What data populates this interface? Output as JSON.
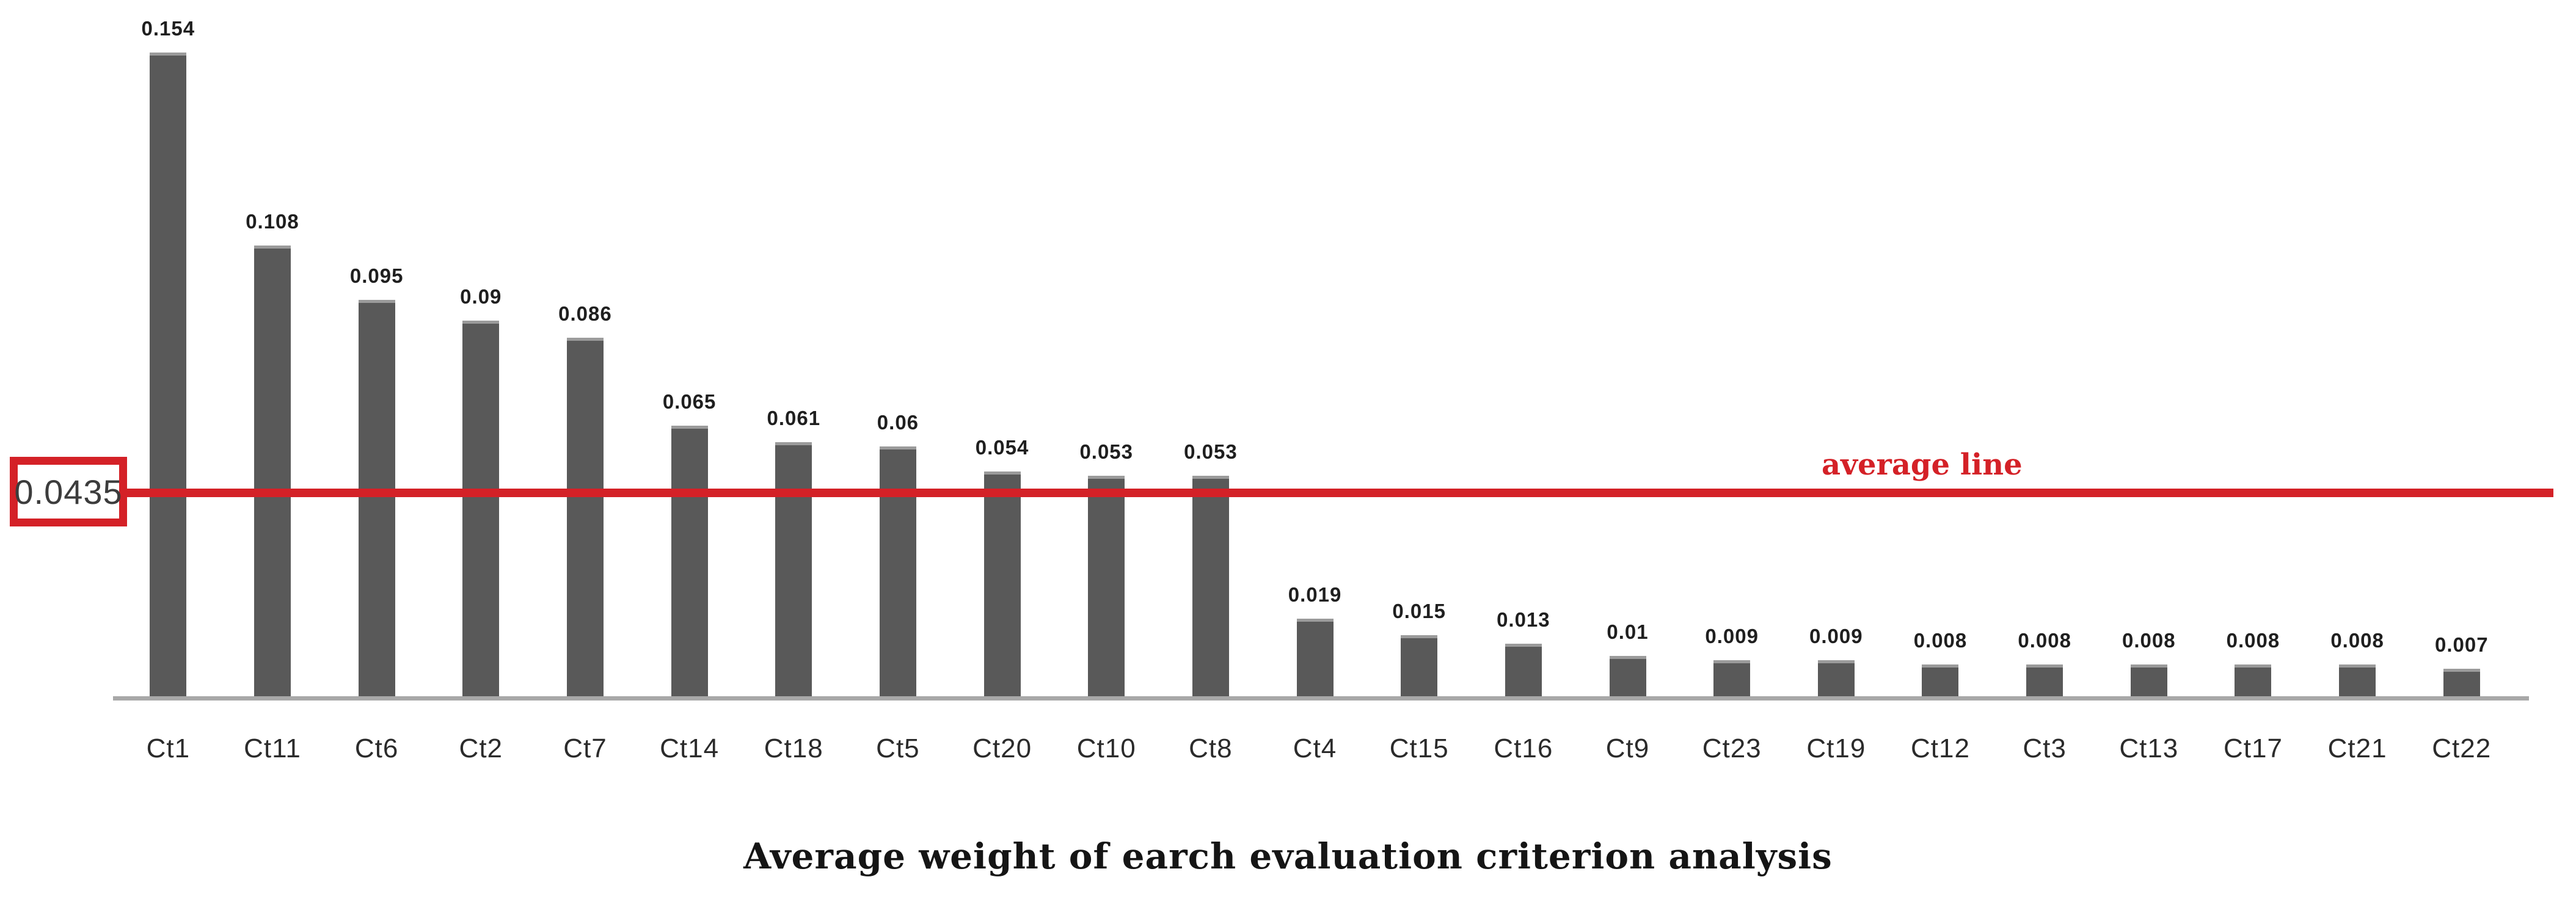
{
  "chart_data": {
    "type": "bar",
    "title": "Average weight of earch evaluation criterion analysis",
    "categories": [
      "Ct1",
      "Ct11",
      "Ct6",
      "Ct2",
      "Ct7",
      "Ct14",
      "Ct18",
      "Ct5",
      "Ct20",
      "Ct10",
      "Ct8",
      "Ct4",
      "Ct15",
      "Ct16",
      "Ct9",
      "Ct23",
      "Ct19",
      "Ct12",
      "Ct3",
      "Ct13",
      "Ct17",
      "Ct21",
      "Ct22"
    ],
    "values": [
      0.154,
      0.108,
      0.095,
      0.09,
      0.086,
      0.065,
      0.061,
      0.06,
      0.054,
      0.053,
      0.053,
      0.019,
      0.015,
      0.013,
      0.01,
      0.009,
      0.009,
      0.008,
      0.008,
      0.008,
      0.008,
      0.008,
      0.007
    ],
    "value_labels": [
      "0.154",
      "0.108",
      "0.095",
      "0.09",
      "0.086",
      "0.065",
      "0.061",
      "0.06",
      "0.054",
      "0.053",
      "0.053",
      "0.019",
      "0.015",
      "0.013",
      "0.01",
      "0.009",
      "0.009",
      "0.008",
      "0.008",
      "0.008",
      "0.008",
      "0.008",
      "0.007"
    ],
    "average_line": {
      "label": "0.0435",
      "value": 0.0435,
      "display_value": 0.049,
      "annotation": "average line"
    },
    "xlabel": "",
    "ylabel": "",
    "ylim": [
      0,
      0.167
    ],
    "grid": false,
    "legend_position": "none",
    "bar_color": "#595959",
    "bar_cap_color": "#9b9b9b",
    "average_line_color": "#d42127",
    "axis_color": "#a8a8a8"
  }
}
